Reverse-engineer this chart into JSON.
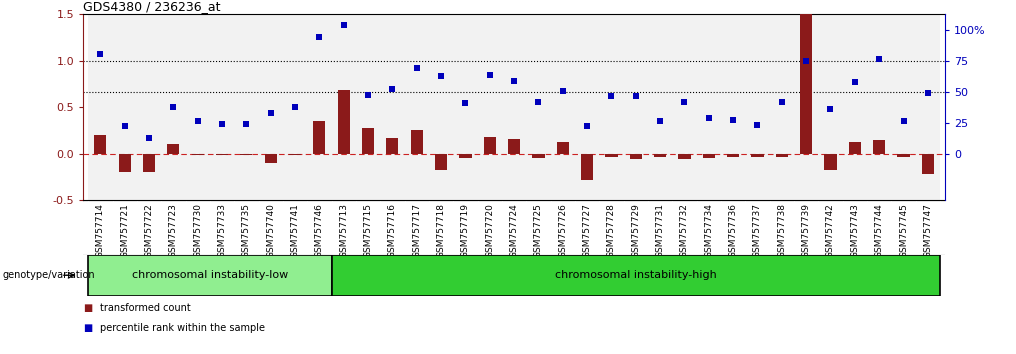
{
  "title": "GDS4380 / 236236_at",
  "samples": [
    "GSM757714",
    "GSM757721",
    "GSM757722",
    "GSM757723",
    "GSM757730",
    "GSM757733",
    "GSM757735",
    "GSM757740",
    "GSM757741",
    "GSM757746",
    "GSM757713",
    "GSM757715",
    "GSM757716",
    "GSM757717",
    "GSM757718",
    "GSM757719",
    "GSM757720",
    "GSM757724",
    "GSM757725",
    "GSM757726",
    "GSM757727",
    "GSM757728",
    "GSM757729",
    "GSM757731",
    "GSM757732",
    "GSM757734",
    "GSM757736",
    "GSM757737",
    "GSM757738",
    "GSM757739",
    "GSM757742",
    "GSM757743",
    "GSM757744",
    "GSM757745",
    "GSM757747"
  ],
  "transformed_count": [
    0.2,
    -0.2,
    -0.2,
    0.1,
    -0.02,
    -0.02,
    -0.02,
    -0.1,
    -0.02,
    0.35,
    0.68,
    0.27,
    0.17,
    0.25,
    -0.18,
    -0.05,
    0.18,
    0.16,
    -0.05,
    0.12,
    -0.28,
    -0.04,
    -0.06,
    -0.04,
    -0.06,
    -0.05,
    -0.04,
    -0.04,
    -0.04,
    1.5,
    -0.18,
    0.12,
    0.15,
    -0.04,
    -0.22
  ],
  "percentile_rank": [
    1.07,
    0.3,
    0.17,
    0.5,
    0.35,
    0.32,
    0.32,
    0.44,
    0.5,
    1.25,
    1.38,
    0.63,
    0.69,
    0.92,
    0.83,
    0.54,
    0.85,
    0.78,
    0.55,
    0.67,
    0.3,
    0.62,
    0.62,
    0.35,
    0.55,
    0.38,
    0.36,
    0.31,
    0.55,
    1.0,
    0.48,
    0.77,
    1.02,
    0.35,
    0.65
  ],
  "low_group_count": 10,
  "bar_color": "#8B1A1A",
  "dot_color": "#0000BB",
  "low_group_color": "#90EE90",
  "high_group_color": "#32CD32",
  "low_label": "chromosomal instability-low",
  "high_label": "chromosomal instability-high",
  "ylim": [
    -0.5,
    1.5
  ],
  "yticks_left": [
    -0.5,
    0.0,
    0.5,
    1.0,
    1.5
  ],
  "yticks_right_labels": [
    "0",
    "25",
    "50",
    "75",
    "100%"
  ],
  "yticks_right_vals_normed": [
    0.0,
    0.3333,
    0.6667,
    1.0,
    1.3333
  ],
  "dotted_line_1": 0.6667,
  "dotted_line_2": 1.0,
  "dashed_line": 0.0,
  "bar_width": 0.5,
  "dot_size": 16,
  "title_fontsize": 9,
  "tick_fontsize": 6.5,
  "bg_color": "#FFFFFF",
  "xtick_band_color": "#C8C8C8"
}
